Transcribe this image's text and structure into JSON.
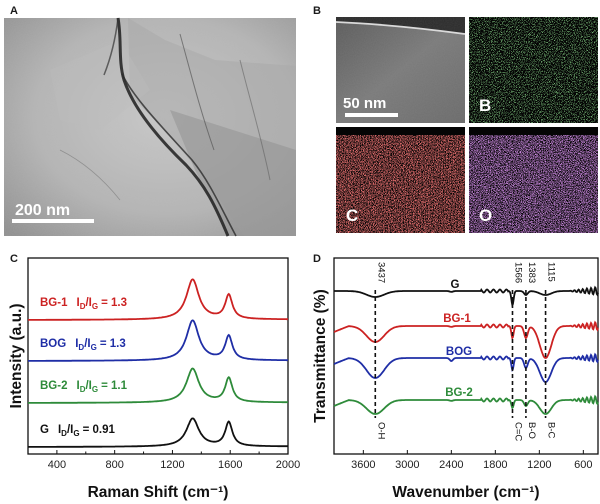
{
  "panels": {
    "a": {
      "letter": "A",
      "scale_bar": "200 nm"
    },
    "b": {
      "letter": "B",
      "scale_bar": "50 nm",
      "maps": [
        {
          "label": "B",
          "color": "#4fd34f"
        },
        {
          "label": "C",
          "color": "#d42b2b"
        },
        {
          "label": "O",
          "color": "#a042c8"
        }
      ]
    },
    "c": {
      "letter": "C"
    },
    "d": {
      "letter": "D"
    }
  },
  "chart_data": [
    {
      "type": "line",
      "xlabel": "Raman Shift (cm⁻¹)",
      "ylabel": "Intensity (a.u.)",
      "xlim": [
        200,
        2000
      ],
      "x_ticks": [
        400,
        800,
        1200,
        1600,
        2000
      ],
      "x_tick_labels": [
        "400",
        "800",
        "1200",
        "1600",
        "2000"
      ],
      "peaks": {
        "D": 1340,
        "G": 1590
      },
      "series": [
        {
          "name": "BG-1",
          "label": "BG-1",
          "ratio": "= 1.3",
          "color": "#cc2222",
          "d_height": 1.3,
          "g_height": 1.0
        },
        {
          "name": "BOG",
          "label": "BOG",
          "ratio": "= 1.3",
          "color": "#1f2ea6",
          "d_height": 1.3,
          "g_height": 1.0
        },
        {
          "name": "BG-2",
          "label": "BG-2",
          "ratio": "= 1.1",
          "color": "#2e8b3a",
          "d_height": 1.1,
          "g_height": 1.0
        },
        {
          "name": "G",
          "label": "G",
          "ratio": "= 0.91",
          "color": "#111111",
          "d_height": 0.91,
          "g_height": 1.0
        }
      ],
      "ratio_symbol": {
        "main1": "I",
        "sub1": "D",
        "slash": "/",
        "main2": "I",
        "sub2": "G"
      }
    },
    {
      "type": "line",
      "xlabel": "Wavenumber (cm⁻¹)",
      "ylabel": "Transmittance (%)",
      "xlim": [
        4000,
        400
      ],
      "x_ticks": [
        3600,
        3000,
        2400,
        1800,
        1200,
        600
      ],
      "x_tick_labels": [
        "3600",
        "3000",
        "2400",
        "1800",
        "1200",
        "600"
      ],
      "bands": [
        {
          "wavenumber": 3437,
          "top_label": "3437",
          "bottom_label": "O-H"
        },
        {
          "wavenumber": 1566,
          "top_label": "1566",
          "bottom_label": "C=C"
        },
        {
          "wavenumber": 1383,
          "top_label": "1383",
          "bottom_label": "B-O"
        },
        {
          "wavenumber": 1115,
          "top_label": "1115",
          "bottom_label": "B-C"
        }
      ],
      "series": [
        {
          "name": "G",
          "label": "G",
          "color": "#111111"
        },
        {
          "name": "BG-1",
          "label": "BG-1",
          "color": "#cc2222"
        },
        {
          "name": "BOG",
          "label": "BOG",
          "color": "#1f2ea6"
        },
        {
          "name": "BG-2",
          "label": "BG-2",
          "color": "#2e8b3a"
        }
      ]
    }
  ]
}
